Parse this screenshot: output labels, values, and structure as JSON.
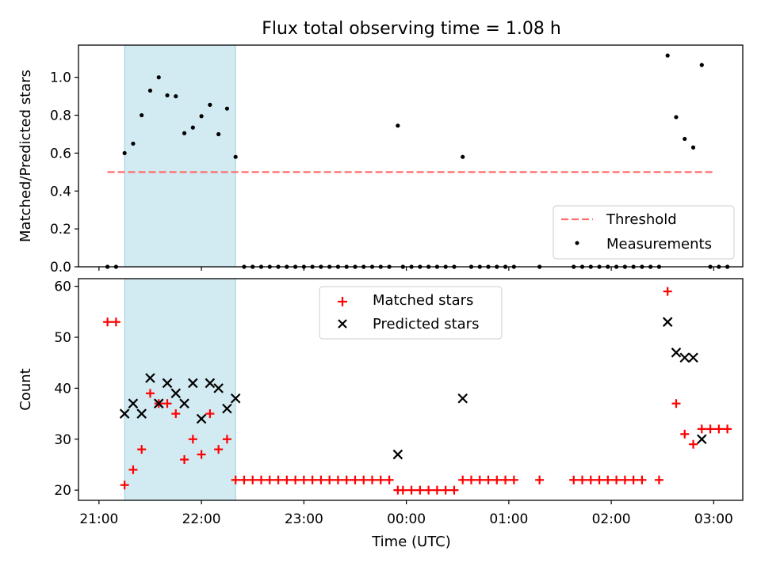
{
  "figure": {
    "title": "Flux total observing time = 1.08 h",
    "colors": {
      "shade": "#add8e6",
      "threshold": "#ff6f6f",
      "measurement": "#000000",
      "matched": "#ff0000",
      "predicted": "#000000"
    }
  },
  "chart_data": [
    {
      "type": "scatter",
      "ylabel": "Matched/Predicted stars",
      "xlim": [
        "20:48",
        "03:17"
      ],
      "ylim": [
        0,
        1.17
      ],
      "ytick_labels": [
        "0.0",
        "0.2",
        "0.4",
        "0.6",
        "0.8",
        "1.0"
      ],
      "yticks": [
        0,
        0.2,
        0.4,
        0.6,
        0.8,
        1.0
      ],
      "xticks": [
        "21:00",
        "22:00",
        "23:00",
        "00:00",
        "01:00",
        "02:00",
        "03:00"
      ],
      "shaded_span": [
        "21:15",
        "22:20"
      ],
      "threshold": {
        "name": "Threshold",
        "value": 0.5,
        "x_range": [
          "21:05",
          "03:00"
        ]
      },
      "legend": {
        "placement": "lower right",
        "entries": [
          "Threshold",
          "Measurements"
        ]
      },
      "series": [
        {
          "name": "Measurements",
          "points": [
            [
              "21:05",
              0
            ],
            [
              "21:10",
              0
            ],
            [
              "21:15",
              0.6
            ],
            [
              "21:20",
              0.65
            ],
            [
              "21:25",
              0.8
            ],
            [
              "21:30",
              0.93
            ],
            [
              "21:35",
              1.0
            ],
            [
              "21:40",
              0.905
            ],
            [
              "21:45",
              0.9
            ],
            [
              "21:50",
              0.705
            ],
            [
              "21:55",
              0.735
            ],
            [
              "22:00",
              0.795
            ],
            [
              "22:05",
              0.855
            ],
            [
              "22:10",
              0.7
            ],
            [
              "22:15",
              0.835
            ],
            [
              "22:20",
              0.58
            ],
            [
              "22:25",
              0
            ],
            [
              "22:30",
              0
            ],
            [
              "22:35",
              0
            ],
            [
              "22:40",
              0
            ],
            [
              "22:45",
              0
            ],
            [
              "22:50",
              0
            ],
            [
              "22:55",
              0
            ],
            [
              "23:00",
              0
            ],
            [
              "23:05",
              0
            ],
            [
              "23:10",
              0
            ],
            [
              "23:15",
              0
            ],
            [
              "23:20",
              0
            ],
            [
              "23:25",
              0
            ],
            [
              "23:30",
              0
            ],
            [
              "23:35",
              0
            ],
            [
              "23:40",
              0
            ],
            [
              "23:45",
              0
            ],
            [
              "23:50",
              0
            ],
            [
              "23:55",
              0.745
            ],
            [
              "23:58",
              0
            ],
            [
              "00:03",
              0
            ],
            [
              "00:08",
              0
            ],
            [
              "00:13",
              0
            ],
            [
              "00:18",
              0
            ],
            [
              "00:23",
              0
            ],
            [
              "00:28",
              0
            ],
            [
              "00:33",
              0.58
            ],
            [
              "00:38",
              0
            ],
            [
              "00:43",
              0
            ],
            [
              "00:48",
              0
            ],
            [
              "00:53",
              0
            ],
            [
              "00:58",
              0
            ],
            [
              "01:03",
              0
            ],
            [
              "01:18",
              0
            ],
            [
              "01:38",
              0
            ],
            [
              "01:43",
              0
            ],
            [
              "01:48",
              0
            ],
            [
              "01:53",
              0
            ],
            [
              "01:58",
              0
            ],
            [
              "02:03",
              0
            ],
            [
              "02:08",
              0
            ],
            [
              "02:13",
              0
            ],
            [
              "02:18",
              0
            ],
            [
              "02:23",
              0
            ],
            [
              "02:28",
              0
            ],
            [
              "02:33",
              1.115
            ],
            [
              "02:38",
              0.79
            ],
            [
              "02:43",
              0.675
            ],
            [
              "02:48",
              0.63
            ],
            [
              "02:53",
              1.065
            ],
            [
              "02:58",
              0
            ],
            [
              "03:03",
              0
            ],
            [
              "03:08",
              0
            ]
          ]
        }
      ]
    },
    {
      "type": "scatter",
      "ylabel": "Count",
      "xlabel": "Time (UTC)",
      "xlim": [
        "20:48",
        "03:17"
      ],
      "ylim": [
        18,
        61.5
      ],
      "ytick_labels": [
        "20",
        "30",
        "40",
        "50",
        "60"
      ],
      "yticks": [
        20,
        30,
        40,
        50,
        60
      ],
      "xticks": [
        "21:00",
        "22:00",
        "23:00",
        "00:00",
        "01:00",
        "02:00",
        "03:00"
      ],
      "shaded_span": [
        "21:15",
        "22:20"
      ],
      "legend": {
        "placement": "upper center",
        "entries": [
          "Matched stars",
          "Predicted stars"
        ]
      },
      "series": [
        {
          "name": "Matched stars",
          "points": [
            [
              "21:05",
              53
            ],
            [
              "21:10",
              53
            ],
            [
              "21:15",
              21
            ],
            [
              "21:20",
              24
            ],
            [
              "21:25",
              28
            ],
            [
              "21:30",
              39
            ],
            [
              "21:35",
              37
            ],
            [
              "21:40",
              37
            ],
            [
              "21:45",
              35
            ],
            [
              "21:50",
              26
            ],
            [
              "21:55",
              30
            ],
            [
              "22:00",
              27
            ],
            [
              "22:05",
              35
            ],
            [
              "22:10",
              28
            ],
            [
              "22:15",
              30
            ],
            [
              "22:20",
              22
            ],
            [
              "22:25",
              22
            ],
            [
              "22:30",
              22
            ],
            [
              "22:35",
              22
            ],
            [
              "22:40",
              22
            ],
            [
              "22:45",
              22
            ],
            [
              "22:50",
              22
            ],
            [
              "22:55",
              22
            ],
            [
              "23:00",
              22
            ],
            [
              "23:05",
              22
            ],
            [
              "23:10",
              22
            ],
            [
              "23:15",
              22
            ],
            [
              "23:20",
              22
            ],
            [
              "23:25",
              22
            ],
            [
              "23:30",
              22
            ],
            [
              "23:35",
              22
            ],
            [
              "23:40",
              22
            ],
            [
              "23:45",
              22
            ],
            [
              "23:50",
              22
            ],
            [
              "23:55",
              20
            ],
            [
              "23:58",
              20
            ],
            [
              "00:03",
              20
            ],
            [
              "00:08",
              20
            ],
            [
              "00:13",
              20
            ],
            [
              "00:18",
              20
            ],
            [
              "00:23",
              20
            ],
            [
              "00:28",
              20
            ],
            [
              "00:33",
              22
            ],
            [
              "00:38",
              22
            ],
            [
              "00:43",
              22
            ],
            [
              "00:48",
              22
            ],
            [
              "00:53",
              22
            ],
            [
              "00:58",
              22
            ],
            [
              "01:03",
              22
            ],
            [
              "01:18",
              22
            ],
            [
              "01:38",
              22
            ],
            [
              "01:43",
              22
            ],
            [
              "01:48",
              22
            ],
            [
              "01:53",
              22
            ],
            [
              "01:58",
              22
            ],
            [
              "02:03",
              22
            ],
            [
              "02:08",
              22
            ],
            [
              "02:13",
              22
            ],
            [
              "02:18",
              22
            ],
            [
              "02:28",
              22
            ],
            [
              "02:33",
              59
            ],
            [
              "02:38",
              37
            ],
            [
              "02:43",
              31
            ],
            [
              "02:48",
              29
            ],
            [
              "02:53",
              32
            ],
            [
              "02:58",
              32
            ],
            [
              "03:03",
              32
            ],
            [
              "03:08",
              32
            ]
          ]
        },
        {
          "name": "Predicted stars",
          "points": [
            [
              "21:15",
              35
            ],
            [
              "21:20",
              37
            ],
            [
              "21:25",
              35
            ],
            [
              "21:30",
              42
            ],
            [
              "21:35",
              37
            ],
            [
              "21:40",
              41
            ],
            [
              "21:45",
              39
            ],
            [
              "21:50",
              37
            ],
            [
              "21:55",
              41
            ],
            [
              "22:00",
              34
            ],
            [
              "22:05",
              41
            ],
            [
              "22:10",
              40
            ],
            [
              "22:15",
              36
            ],
            [
              "22:20",
              38
            ],
            [
              "23:55",
              27
            ],
            [
              "00:33",
              38
            ],
            [
              "02:33",
              53
            ],
            [
              "02:38",
              47
            ],
            [
              "02:43",
              46
            ],
            [
              "02:48",
              46
            ],
            [
              "02:53",
              30
            ]
          ]
        }
      ]
    }
  ]
}
